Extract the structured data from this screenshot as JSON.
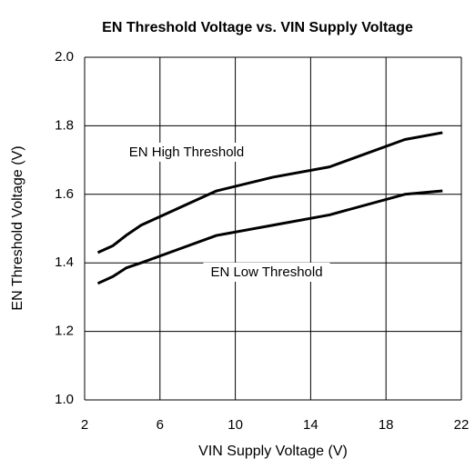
{
  "chart_data": {
    "type": "line",
    "title": "EN Threshold Voltage vs. VIN Supply Voltage",
    "x_label": "VIN Supply Voltage (V)",
    "y_label": "EN Threshold Voltage (V)",
    "x": [
      2.7,
      3.5,
      4.2,
      5,
      7,
      9,
      12,
      15,
      19,
      21
    ],
    "series": [
      {
        "name": "EN High Threshold",
        "color": "#000000",
        "values": [
          1.43,
          1.45,
          1.48,
          1.51,
          1.56,
          1.61,
          1.65,
          1.68,
          1.76,
          1.78
        ]
      },
      {
        "name": "EN Low Threshold",
        "color": "#000000",
        "values": [
          1.34,
          1.36,
          1.385,
          1.4,
          1.44,
          1.48,
          1.51,
          1.54,
          1.6,
          1.61
        ]
      }
    ],
    "xlim": [
      2,
      22
    ],
    "xticks": [
      2,
      6,
      10,
      14,
      18,
      22
    ],
    "ylim": [
      1,
      2
    ],
    "yticks": [
      {
        "value": 1,
        "label": "1.0"
      },
      1.2,
      1.4,
      1.6,
      1.8,
      {
        "value": 2,
        "label": "2.0"
      }
    ],
    "grid": true
  }
}
